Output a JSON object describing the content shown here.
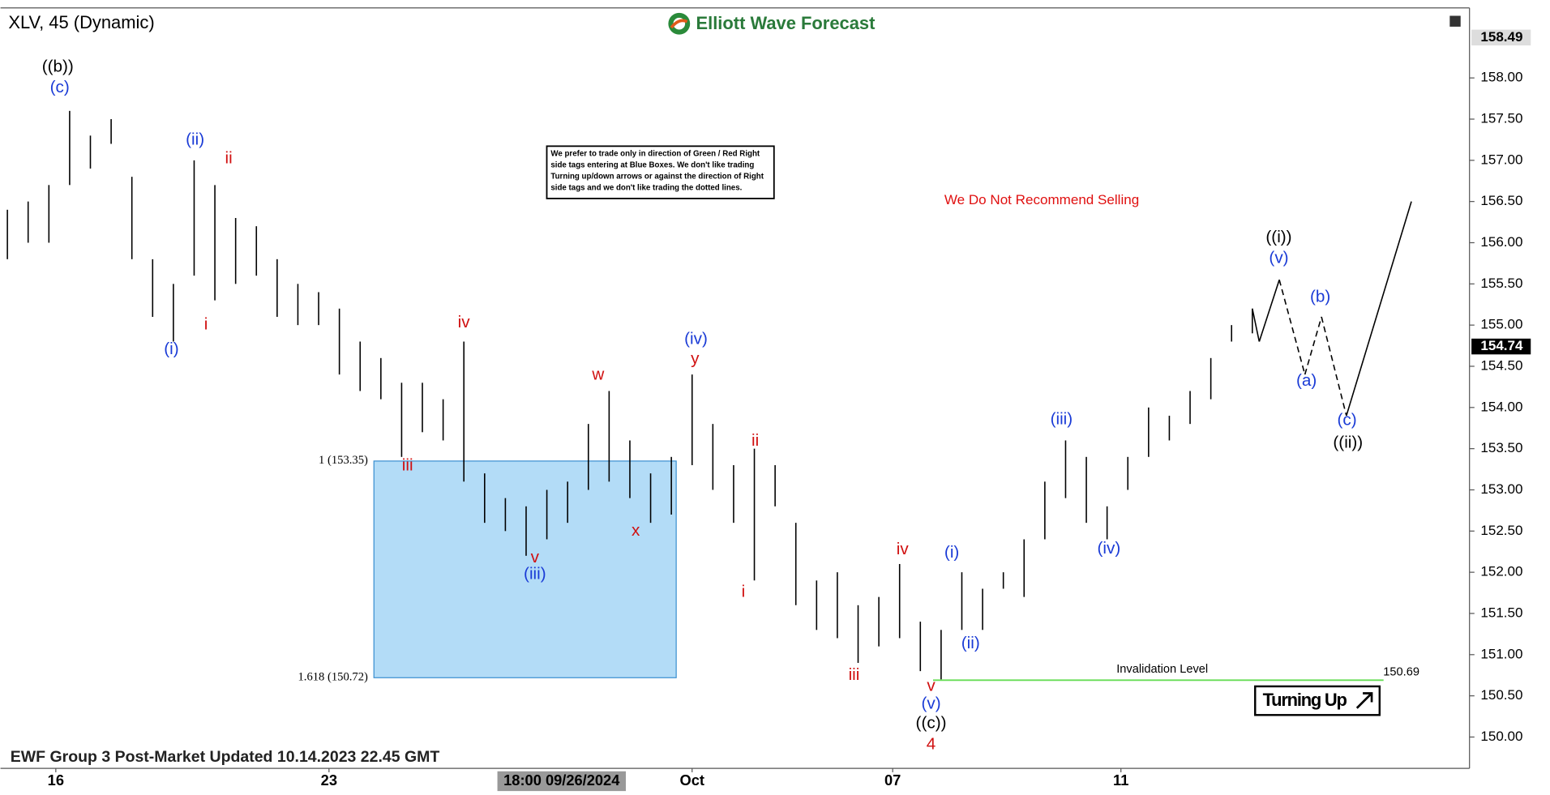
{
  "chart_data": {
    "type": "hilo",
    "title": "XLV, 45 (Dynamic)",
    "brand": "Elliott Wave Forecast",
    "note": [
      "We prefer to trade only in direction of Green / Red Right",
      "side tags entering at Blue Boxes. We don't like trading",
      "Turning up/down arrows or against the direction of Right",
      "side tags and we don't like trading the dotted lines."
    ],
    "annotation": "We Do Not Recommend Selling",
    "footer": "EWF Group 3 Post-Market Updated 10.14.2023 22.45 GMT",
    "crosshair_label": "18:00 09/26/2024",
    "signal": "Turning Up",
    "xlim": [
      0,
      212.4
    ],
    "xticks": [
      {
        "value": 8,
        "label": "16"
      },
      {
        "value": 47.5,
        "label": "23"
      },
      {
        "value": 100,
        "label": "Oct"
      },
      {
        "value": 129,
        "label": "07"
      },
      {
        "value": 162,
        "label": "11"
      }
    ],
    "ylim": [
      149.62,
      158.85
    ],
    "yticks": [
      {
        "value": 150,
        "label": "150.00"
      },
      {
        "value": 150.5,
        "label": "150.50"
      },
      {
        "value": 151,
        "label": "151.00"
      },
      {
        "value": 151.5,
        "label": "151.50"
      },
      {
        "value": 152,
        "label": "152.00"
      },
      {
        "value": 152.5,
        "label": "152.50"
      },
      {
        "value": 153,
        "label": "153.00"
      },
      {
        "value": 153.5,
        "label": "153.50"
      },
      {
        "value": 154,
        "label": "154.00"
      },
      {
        "value": 154.5,
        "label": "154.50"
      },
      {
        "value": 155,
        "label": "155.00"
      },
      {
        "value": 155.5,
        "label": "155.50"
      },
      {
        "value": 156,
        "label": "156.00"
      },
      {
        "value": 156.5,
        "label": "156.50"
      },
      {
        "value": 157,
        "label": "157.00"
      },
      {
        "value": 157.5,
        "label": "157.50"
      },
      {
        "value": 158,
        "label": "158.00"
      }
    ],
    "top_price": {
      "value": 158.49,
      "label": "158.49"
    },
    "last_price": {
      "value": 154.74,
      "label": "154.74"
    },
    "x": [
      1,
      4,
      7,
      10,
      13,
      16,
      19,
      22,
      25,
      28,
      31,
      34,
      37,
      40,
      43,
      46,
      49,
      52,
      55,
      58,
      61,
      64,
      67,
      70,
      73,
      76,
      79,
      82,
      85,
      88,
      91,
      94,
      97,
      100,
      103,
      106,
      109,
      112,
      115,
      118,
      121,
      124,
      127,
      130,
      133,
      136,
      139,
      142,
      145,
      148,
      151,
      154,
      157,
      160,
      163,
      166,
      169,
      172,
      175,
      178,
      181
    ],
    "high": [
      156.4,
      156.5,
      156.7,
      157.6,
      157.3,
      157.5,
      156.8,
      155.8,
      155.5,
      157.0,
      156.7,
      156.3,
      156.2,
      155.8,
      155.5,
      155.4,
      155.2,
      154.8,
      154.6,
      154.3,
      154.3,
      154.1,
      154.8,
      153.2,
      152.9,
      152.8,
      153.0,
      153.1,
      153.8,
      154.2,
      153.6,
      153.2,
      153.4,
      154.4,
      153.8,
      153.3,
      153.5,
      153.3,
      152.6,
      151.9,
      152.0,
      151.6,
      151.7,
      152.1,
      151.4,
      151.3,
      152.0,
      151.8,
      152.0,
      152.4,
      153.1,
      153.6,
      153.4,
      152.8,
      153.4,
      154.0,
      153.9,
      154.2,
      154.6,
      155.0,
      155.2
    ],
    "low": [
      155.8,
      156.0,
      156.0,
      156.7,
      156.9,
      157.2,
      155.8,
      155.1,
      154.8,
      155.6,
      155.3,
      155.5,
      155.6,
      155.1,
      155.0,
      155.0,
      154.4,
      154.2,
      154.1,
      153.4,
      153.7,
      153.6,
      153.1,
      152.6,
      152.5,
      152.2,
      152.4,
      152.6,
      153.0,
      153.1,
      152.9,
      152.6,
      152.7,
      153.3,
      153.0,
      152.6,
      151.9,
      152.8,
      151.6,
      151.3,
      151.2,
      150.9,
      151.1,
      151.2,
      150.8,
      150.7,
      151.3,
      151.3,
      151.8,
      151.7,
      152.4,
      152.9,
      152.6,
      152.4,
      153.0,
      153.4,
      153.6,
      153.8,
      154.1,
      154.8,
      154.9
    ],
    "bar_color": "#000000",
    "projection": {
      "x": [
        181,
        182,
        184.9,
        188.6,
        191,
        194.6,
        204
      ],
      "values": [
        155.2,
        154.8,
        155.55,
        154.4,
        155.1,
        153.9,
        156.5
      ],
      "color": "#000000"
    },
    "blue_box": {
      "top": 153.35,
      "bottom": 150.72,
      "top_label": "1 (153.35)",
      "bottom_label": "1.618 (150.72)",
      "color": "#b3dcf7"
    },
    "invalidation": {
      "value": 150.69,
      "label": "Invalidation Level",
      "color": "#66dd55"
    },
    "wave_labels": [
      {
        "text": "((b))",
        "color": "#000000"
      },
      {
        "text": "(c)",
        "color": "#1a3bd6"
      },
      {
        "text": "(i)",
        "color": "#1a3bd6"
      },
      {
        "text": "(ii)",
        "color": "#1a3bd6"
      },
      {
        "text": "i",
        "color": "#d01010"
      },
      {
        "text": "ii",
        "color": "#d01010"
      },
      {
        "text": "iii",
        "color": "#d01010"
      },
      {
        "text": "iv",
        "color": "#d01010"
      },
      {
        "text": "v",
        "color": "#d01010"
      },
      {
        "text": "(iii)",
        "color": "#1a3bd6"
      },
      {
        "text": "w",
        "color": "#d01010"
      },
      {
        "text": "x",
        "color": "#d01010"
      },
      {
        "text": "y",
        "color": "#d01010"
      },
      {
        "text": "(iv)",
        "color": "#1a3bd6"
      },
      {
        "text": "i",
        "color": "#d01010"
      },
      {
        "text": "ii",
        "color": "#d01010"
      },
      {
        "text": "iii",
        "color": "#d01010"
      },
      {
        "text": "iv",
        "color": "#d01010"
      },
      {
        "text": "v",
        "color": "#d01010"
      },
      {
        "text": "(v)",
        "color": "#1a3bd6"
      },
      {
        "text": "((c))",
        "color": "#000000"
      },
      {
        "text": "4",
        "color": "#d01010"
      },
      {
        "text": "(i)",
        "color": "#1a3bd6"
      },
      {
        "text": "(ii)",
        "color": "#1a3bd6"
      },
      {
        "text": "(iii)",
        "color": "#1a3bd6"
      },
      {
        "text": "(iv)",
        "color": "#1a3bd6"
      },
      {
        "text": "((i))",
        "color": "#000000"
      },
      {
        "text": "(v)",
        "color": "#1a3bd6"
      },
      {
        "text": "(b)",
        "color": "#1a3bd6"
      },
      {
        "text": "(a)",
        "color": "#1a3bd6"
      },
      {
        "text": "(c)",
        "color": "#1a3bd6"
      },
      {
        "text": "((ii))",
        "color": "#000000"
      }
    ]
  }
}
